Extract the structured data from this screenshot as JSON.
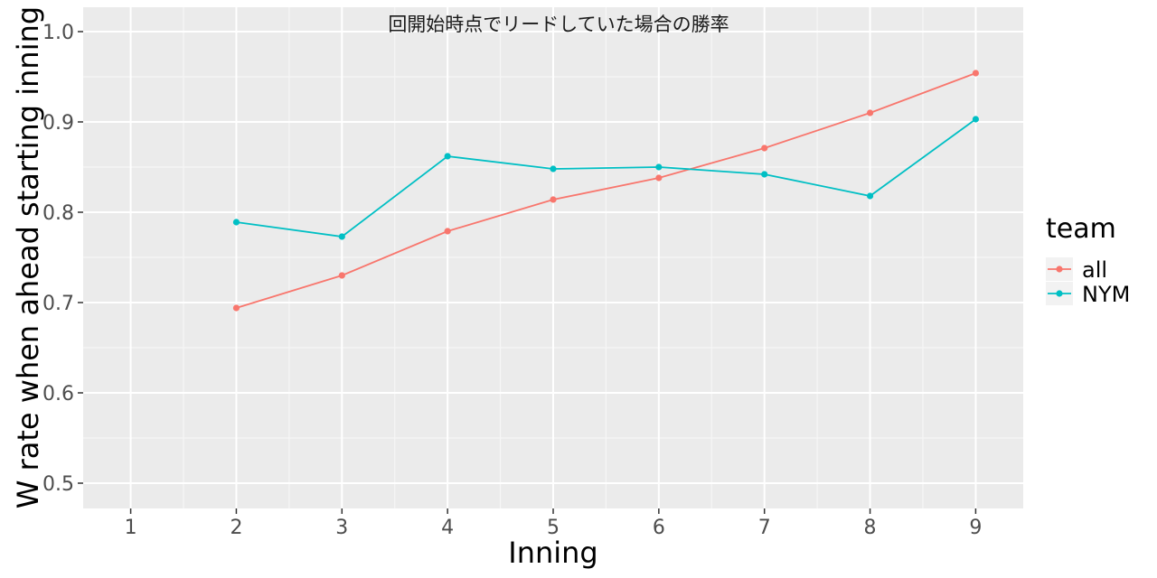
{
  "chart_data": {
    "type": "line",
    "title": "回開始時点でリードしていた場合の勝率",
    "xlabel": "Inning",
    "ylabel": "W rate when ahead starting inning",
    "x": [
      1,
      2,
      3,
      4,
      5,
      6,
      7,
      8,
      9
    ],
    "x_tick_labels": [
      "1",
      "2",
      "3",
      "4",
      "5",
      "6",
      "7",
      "8",
      "9"
    ],
    "xlim": [
      0.55,
      9.45
    ],
    "ylim": [
      0.472,
      1.027
    ],
    "y_ticks": [
      0.5,
      0.6,
      0.7,
      0.8,
      0.9,
      1.0
    ],
    "y_tick_labels": [
      "0.5",
      "0.6",
      "0.7",
      "0.8",
      "0.9",
      "1.0"
    ],
    "grid": true,
    "legend": {
      "title": "team",
      "position": "right"
    },
    "series": [
      {
        "name": "all",
        "color": "#F8766D",
        "x": [
          2,
          3,
          4,
          5,
          6,
          7,
          8,
          9
        ],
        "values": [
          0.694,
          0.73,
          0.779,
          0.814,
          0.838,
          0.871,
          0.91,
          0.954
        ]
      },
      {
        "name": "NYM",
        "color": "#00BFC4",
        "x": [
          2,
          3,
          4,
          5,
          6,
          7,
          8,
          9
        ],
        "values": [
          0.789,
          0.773,
          0.862,
          0.848,
          0.85,
          0.842,
          0.818,
          0.903
        ]
      }
    ]
  }
}
